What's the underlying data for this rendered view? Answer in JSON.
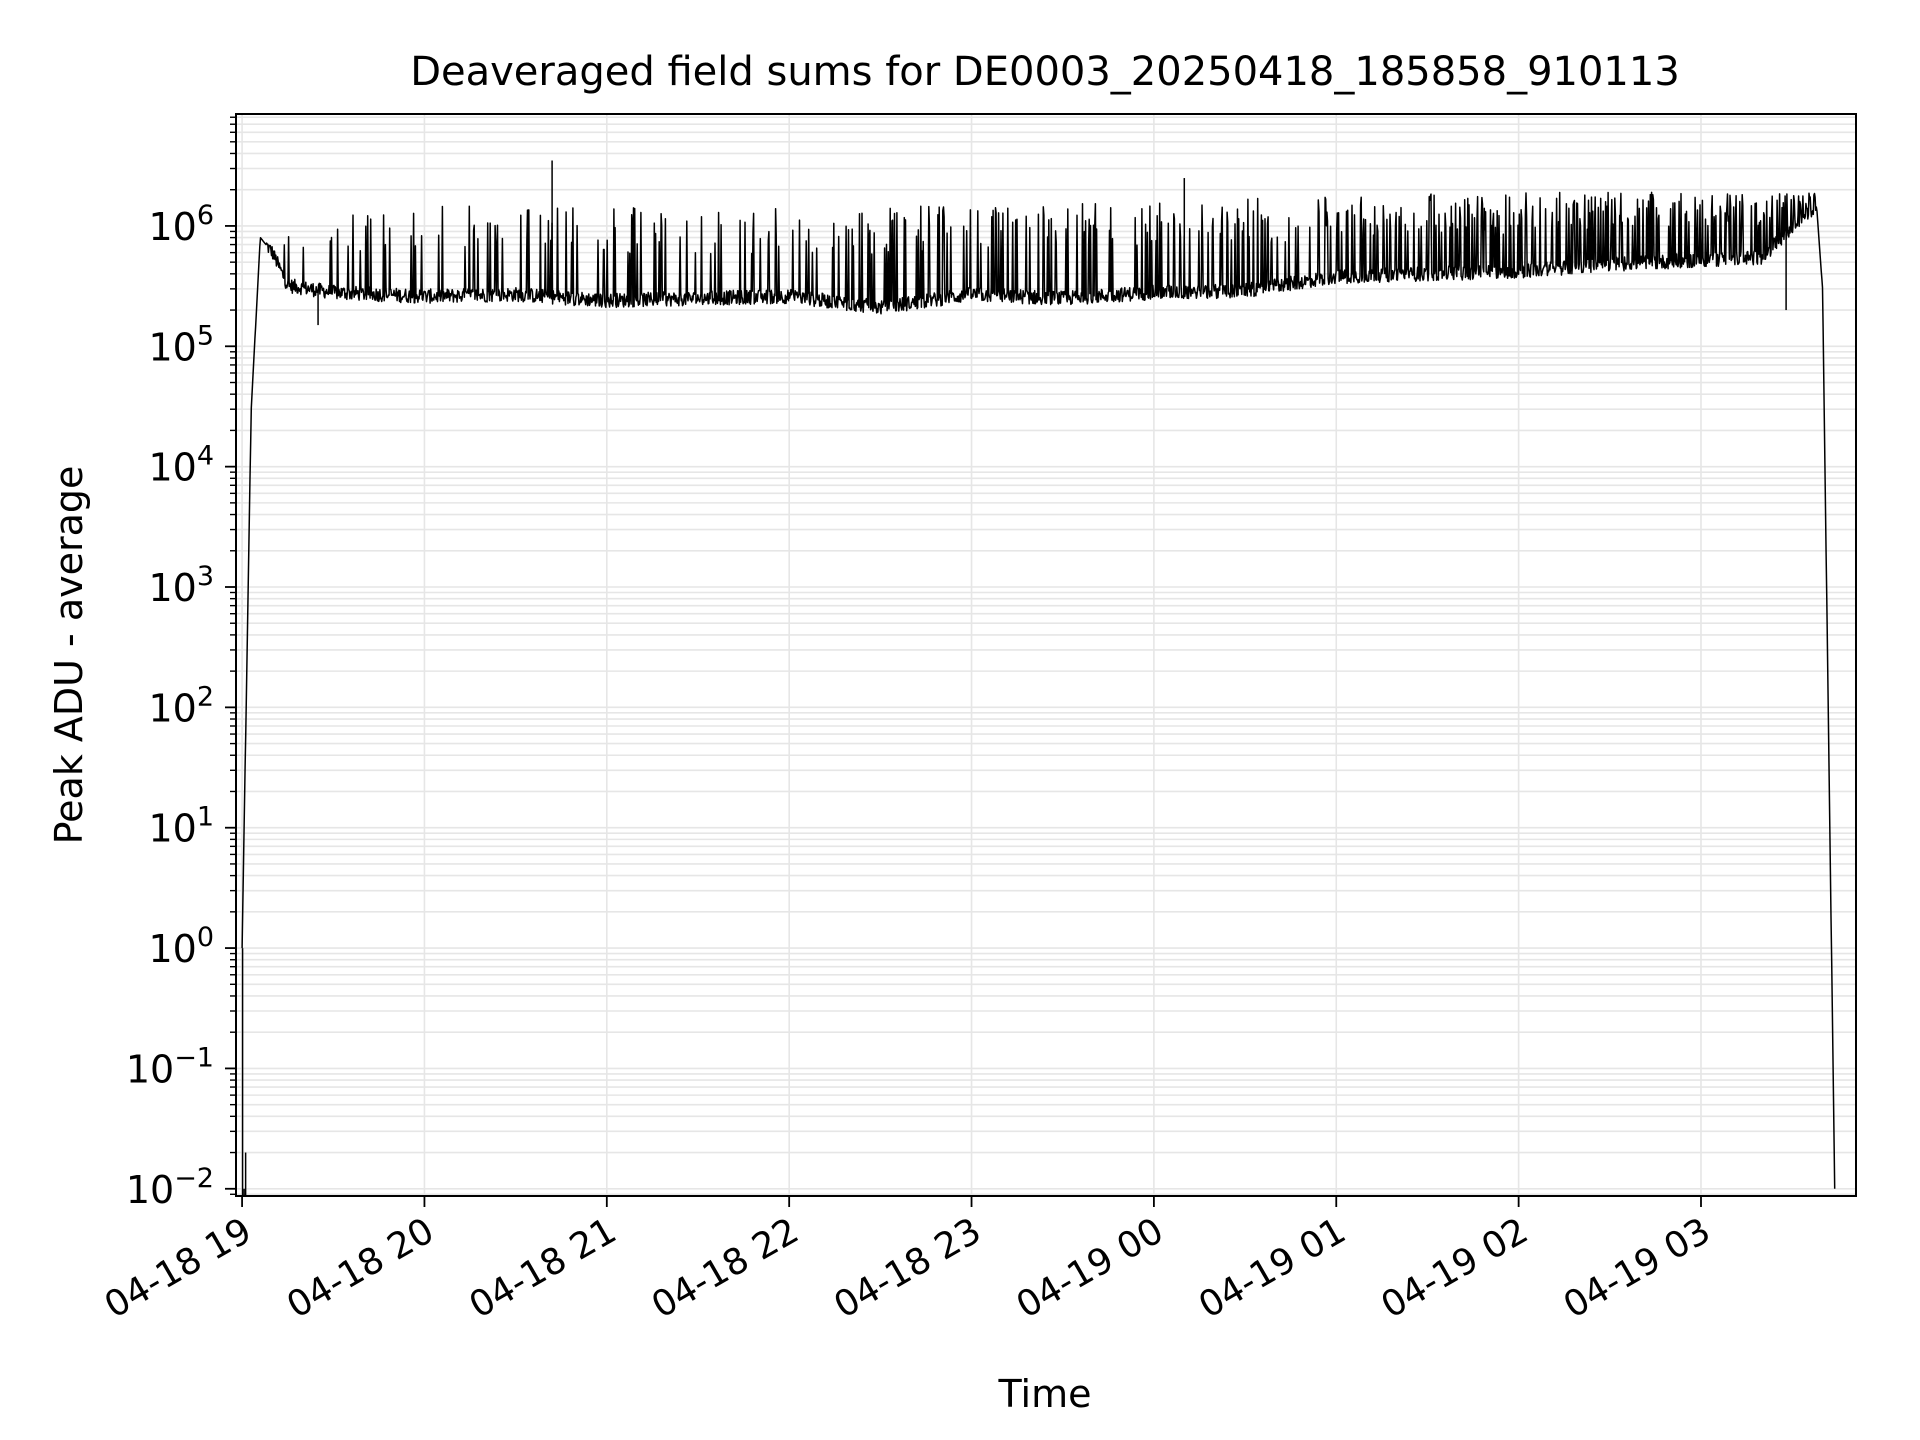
{
  "chart_data": {
    "type": "line",
    "title": "Deaveraged field sums for DE0003_20250418_185858_910113",
    "xlabel": "Time",
    "ylabel": "Peak ADU - average",
    "yscale": "log",
    "ylim_exponent": [
      -2.06,
      6.93
    ],
    "xlim": [
      "2025-04-18 18:58:00",
      "2025-04-19 03:51:00"
    ],
    "grid": true,
    "legend": "none",
    "line_color": "#000000",
    "x_ticks": [
      {
        "time": "2025-04-18 19:00",
        "label": "04-18 19"
      },
      {
        "time": "2025-04-18 20:00",
        "label": "04-18 20"
      },
      {
        "time": "2025-04-18 21:00",
        "label": "04-18 21"
      },
      {
        "time": "2025-04-18 22:00",
        "label": "04-18 22"
      },
      {
        "time": "2025-04-18 23:00",
        "label": "04-18 23"
      },
      {
        "time": "2025-04-19 00:00",
        "label": "04-19 00"
      },
      {
        "time": "2025-04-19 01:00",
        "label": "04-19 01"
      },
      {
        "time": "2025-04-19 02:00",
        "label": "04-19 02"
      },
      {
        "time": "2025-04-19 03:00",
        "label": "04-19 03"
      }
    ],
    "y_ticks": [
      {
        "exp": 6,
        "base": "10",
        "sup": "6"
      },
      {
        "exp": 5,
        "base": "10",
        "sup": "5"
      },
      {
        "exp": 4,
        "base": "10",
        "sup": "4"
      },
      {
        "exp": 3,
        "base": "10",
        "sup": "3"
      },
      {
        "exp": 2,
        "base": "10",
        "sup": "2"
      },
      {
        "exp": 1,
        "base": "10",
        "sup": "1"
      },
      {
        "exp": 0,
        "base": "10",
        "sup": "0"
      },
      {
        "exp": -1,
        "base": "10",
        "sup": "−1"
      },
      {
        "exp": -2,
        "base": "10",
        "sup": "−2"
      }
    ],
    "series": [
      {
        "baseline": [
          [
            "2025-04-18 19:00",
            1.0
          ],
          [
            "2025-04-18 19:03",
            30000
          ],
          [
            "2025-04-18 19:06",
            800000
          ],
          [
            "2025-04-18 19:10",
            600000
          ],
          [
            "2025-04-18 19:15",
            320000
          ],
          [
            "2025-04-18 19:30",
            280000
          ],
          [
            "2025-04-18 20:00",
            260000
          ],
          [
            "2025-04-18 20:30",
            270000
          ],
          [
            "2025-04-18 21:00",
            240000
          ],
          [
            "2025-04-18 21:30",
            250000
          ],
          [
            "2025-04-18 22:00",
            260000
          ],
          [
            "2025-04-18 22:30",
            210000
          ],
          [
            "2025-04-18 23:00",
            270000
          ],
          [
            "2025-04-18 23:30",
            250000
          ],
          [
            "2025-04-19 00:00",
            280000
          ],
          [
            "2025-04-19 00:30",
            290000
          ],
          [
            "2025-04-19 01:00",
            380000
          ],
          [
            "2025-04-19 01:30",
            400000
          ],
          [
            "2025-04-19 02:00",
            420000
          ],
          [
            "2025-04-19 02:30",
            480000
          ],
          [
            "2025-04-19 03:00",
            520000
          ],
          [
            "2025-04-19 03:20",
            550000
          ],
          [
            "2025-04-19 03:38",
            1500000
          ],
          [
            "2025-04-19 03:40",
            300000
          ],
          [
            "2025-04-19 03:44",
            0.01
          ]
        ],
        "spike_peak": [
          [
            "2025-04-18 19:10",
            1000000
          ],
          [
            "2025-04-18 20:00",
            1500000
          ],
          [
            "2025-04-18 21:00",
            1500000
          ],
          [
            "2025-04-18 22:00",
            1400000
          ],
          [
            "2025-04-18 23:00",
            1500000
          ],
          [
            "2025-04-19 00:00",
            1600000
          ],
          [
            "2025-04-19 01:00",
            1800000
          ],
          [
            "2025-04-19 02:00",
            1900000
          ],
          [
            "2025-04-19 03:00",
            1900000
          ]
        ],
        "outliers": [
          [
            "2025-04-18 20:42",
            3500000
          ],
          [
            "2025-04-19 00:10",
            2500000
          ],
          [
            "2025-04-19 03:28",
            200000
          ],
          [
            "2025-04-18 19:25",
            150000
          ]
        ]
      }
    ]
  }
}
